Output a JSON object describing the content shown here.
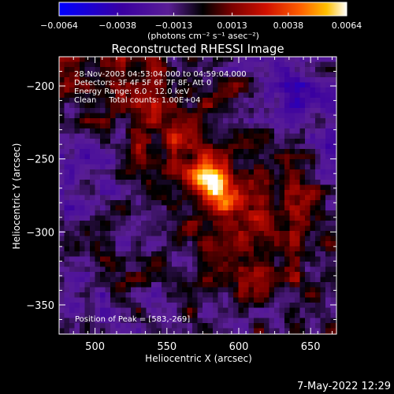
{
  "chart_data": {
    "type": "heatmap",
    "title": "Reconstructed RHESSI Image",
    "xlabel": "Heliocentric X (arcsec)",
    "ylabel": "Heliocentric Y (arcsec)",
    "xlim": [
      475,
      668
    ],
    "ylim": [
      -370,
      -180
    ],
    "xticks": [
      500,
      550,
      600,
      650
    ],
    "yticks": [
      -200,
      -250,
      -300,
      -350
    ],
    "colorbar": {
      "min": -0.0064,
      "max": 0.0064,
      "ticks": [
        "−0.0064",
        "−0.0038",
        "−0.0013",
        "0.0013",
        "0.0038",
        "0.0064"
      ],
      "tick_values": [
        -0.0064,
        -0.0038,
        -0.0013,
        0.0013,
        0.0038,
        0.0064
      ],
      "unit_label": "(photons cm⁻² s⁻¹ asec⁻²)",
      "colormap": [
        "#0000ff",
        "#3a00a0",
        "#5a1e96",
        "#000000",
        "#7a0000",
        "#d01000",
        "#ff6000",
        "#ffc000",
        "#ffffff"
      ]
    },
    "annotations": [
      "28-Nov-2003 04:53:04.000 to 04:59:04.000",
      "Detectors: 3F 4F 5F 6F 7F 8F, Att 0",
      "Energy Range: 6.0 - 12.0 keV",
      "Clean     Total counts: 1.00E+04"
    ],
    "peak_label": "Position of Peak = [583,-269]",
    "peak": {
      "x": 583,
      "y": -269,
      "value": 0.0064
    }
  },
  "footer": {
    "date": "7-May-2022 12:29"
  }
}
